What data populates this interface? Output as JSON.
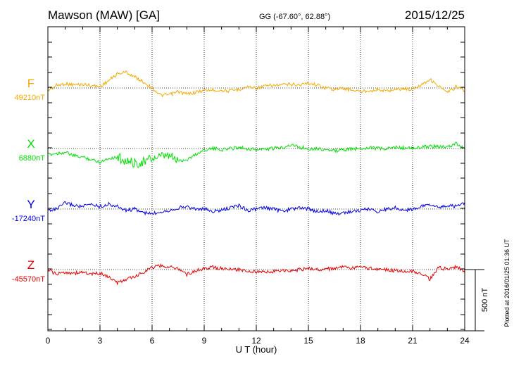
{
  "header": {
    "station": "Mawson (MAW)  [GA]",
    "coords": "GG (-67.60°,  62.88°)",
    "date": "2015/12/25"
  },
  "footer": {
    "plotted_note": "Plotted at 2016/01/25 01:36 UT",
    "scale_label": "500 nT"
  },
  "chart_data": {
    "type": "line",
    "xlabel": "U T (hour)",
    "xlim": [
      0,
      24
    ],
    "xticks": [
      "0",
      "3",
      "6",
      "9",
      "12",
      "15",
      "18",
      "21",
      "24"
    ],
    "scale_bar_nT": 500,
    "grid": true,
    "series": [
      {
        "name": "F",
        "baseline_label": "49210nT",
        "color": "#F5A800",
        "x": [
          0,
          0.5,
          1,
          1.5,
          2,
          2.5,
          3,
          3.5,
          4,
          4.5,
          5,
          5.5,
          6,
          6.5,
          7,
          7.5,
          8,
          8.5,
          9,
          9.5,
          10,
          10.5,
          11,
          11.5,
          12,
          12.5,
          13,
          13.5,
          14,
          14.5,
          15,
          15.5,
          16,
          16.5,
          17,
          17.5,
          18,
          18.5,
          19,
          19.5,
          20,
          20.5,
          21,
          21.5,
          22,
          22.5,
          23,
          23.5,
          24
        ],
        "y": [
          -20,
          20,
          35,
          25,
          30,
          20,
          10,
          60,
          115,
          130,
          90,
          50,
          0,
          -60,
          -55,
          -30,
          -50,
          -35,
          -20,
          -15,
          -20,
          -25,
          -10,
          10,
          0,
          15,
          20,
          25,
          30,
          25,
          40,
          25,
          0,
          -10,
          -5,
          -15,
          -30,
          -20,
          -15,
          -25,
          -10,
          -5,
          -10,
          30,
          70,
          15,
          -40,
          10,
          -20
        ]
      },
      {
        "name": "X",
        "baseline_label": "6880nT",
        "color": "#00E000",
        "x": [
          0,
          0.5,
          1,
          1.5,
          2,
          2.5,
          3,
          3.5,
          4,
          4.5,
          5,
          5.5,
          6,
          6.5,
          7,
          7.5,
          8,
          8.5,
          9,
          9.5,
          10,
          10.5,
          11,
          11.5,
          12,
          12.5,
          13,
          13.5,
          14,
          14.5,
          15,
          15.5,
          16,
          16.5,
          17,
          17.5,
          18,
          18.5,
          19,
          19.5,
          20,
          20.5,
          21,
          21.5,
          22,
          22.5,
          23,
          23.5,
          24
        ],
        "y": [
          -50,
          -40,
          -30,
          -60,
          -70,
          -90,
          -110,
          -80,
          -70,
          -100,
          -120,
          -110,
          -80,
          -70,
          -60,
          -100,
          -90,
          -50,
          -10,
          0,
          -10,
          0,
          10,
          0,
          -10,
          -5,
          0,
          10,
          30,
          10,
          0,
          0,
          -10,
          -20,
          -10,
          -5,
          0,
          10,
          0,
          -5,
          10,
          5,
          0,
          10,
          20,
          15,
          10,
          40,
          0
        ]
      },
      {
        "name": "Y",
        "baseline_label": "-17240nT",
        "color": "#0000E6",
        "x": [
          0,
          0.5,
          1,
          1.5,
          2,
          2.5,
          3,
          3.5,
          4,
          4.5,
          5,
          5.5,
          6,
          6.5,
          7,
          7.5,
          8,
          8.5,
          9,
          9.5,
          10,
          10.5,
          11,
          11.5,
          12,
          12.5,
          13,
          13.5,
          14,
          14.5,
          15,
          15.5,
          16,
          16.5,
          17,
          17.5,
          18,
          18.5,
          19,
          19.5,
          20,
          20.5,
          21,
          21.5,
          22,
          22.5,
          23,
          23.5,
          24
        ],
        "y": [
          -10,
          0,
          50,
          30,
          20,
          40,
          20,
          40,
          20,
          -10,
          0,
          -30,
          -40,
          -20,
          -10,
          10,
          20,
          0,
          0,
          -20,
          -10,
          10,
          30,
          -10,
          0,
          10,
          0,
          -20,
          0,
          10,
          0,
          -20,
          -10,
          -40,
          -30,
          -20,
          -10,
          0,
          -20,
          0,
          10,
          -10,
          0,
          20,
          40,
          10,
          30,
          20,
          50
        ]
      },
      {
        "name": "Z",
        "baseline_label": "-45570nT",
        "color": "#E60000",
        "x": [
          0,
          0.5,
          1,
          1.5,
          2,
          2.5,
          3,
          3.5,
          4,
          4.5,
          5,
          5.5,
          6,
          6.5,
          7,
          7.5,
          8,
          8.5,
          9,
          9.5,
          10,
          10.5,
          11,
          11.5,
          12,
          12.5,
          13,
          13.5,
          14,
          14.5,
          15,
          15.5,
          16,
          16.5,
          17,
          17.5,
          18,
          18.5,
          19,
          19.5,
          20,
          20.5,
          21,
          21.5,
          22,
          22.5,
          23,
          23.5,
          24
        ],
        "y": [
          0,
          -40,
          -20,
          -30,
          -20,
          -40,
          -30,
          -60,
          -110,
          -80,
          -60,
          -20,
          20,
          30,
          20,
          10,
          -40,
          -10,
          10,
          20,
          10,
          0,
          0,
          -10,
          -20,
          -20,
          -15,
          -10,
          -10,
          0,
          10,
          0,
          5,
          10,
          20,
          10,
          20,
          10,
          5,
          0,
          -10,
          -10,
          -15,
          -30,
          -80,
          20,
          0,
          20,
          -10
        ]
      }
    ]
  }
}
